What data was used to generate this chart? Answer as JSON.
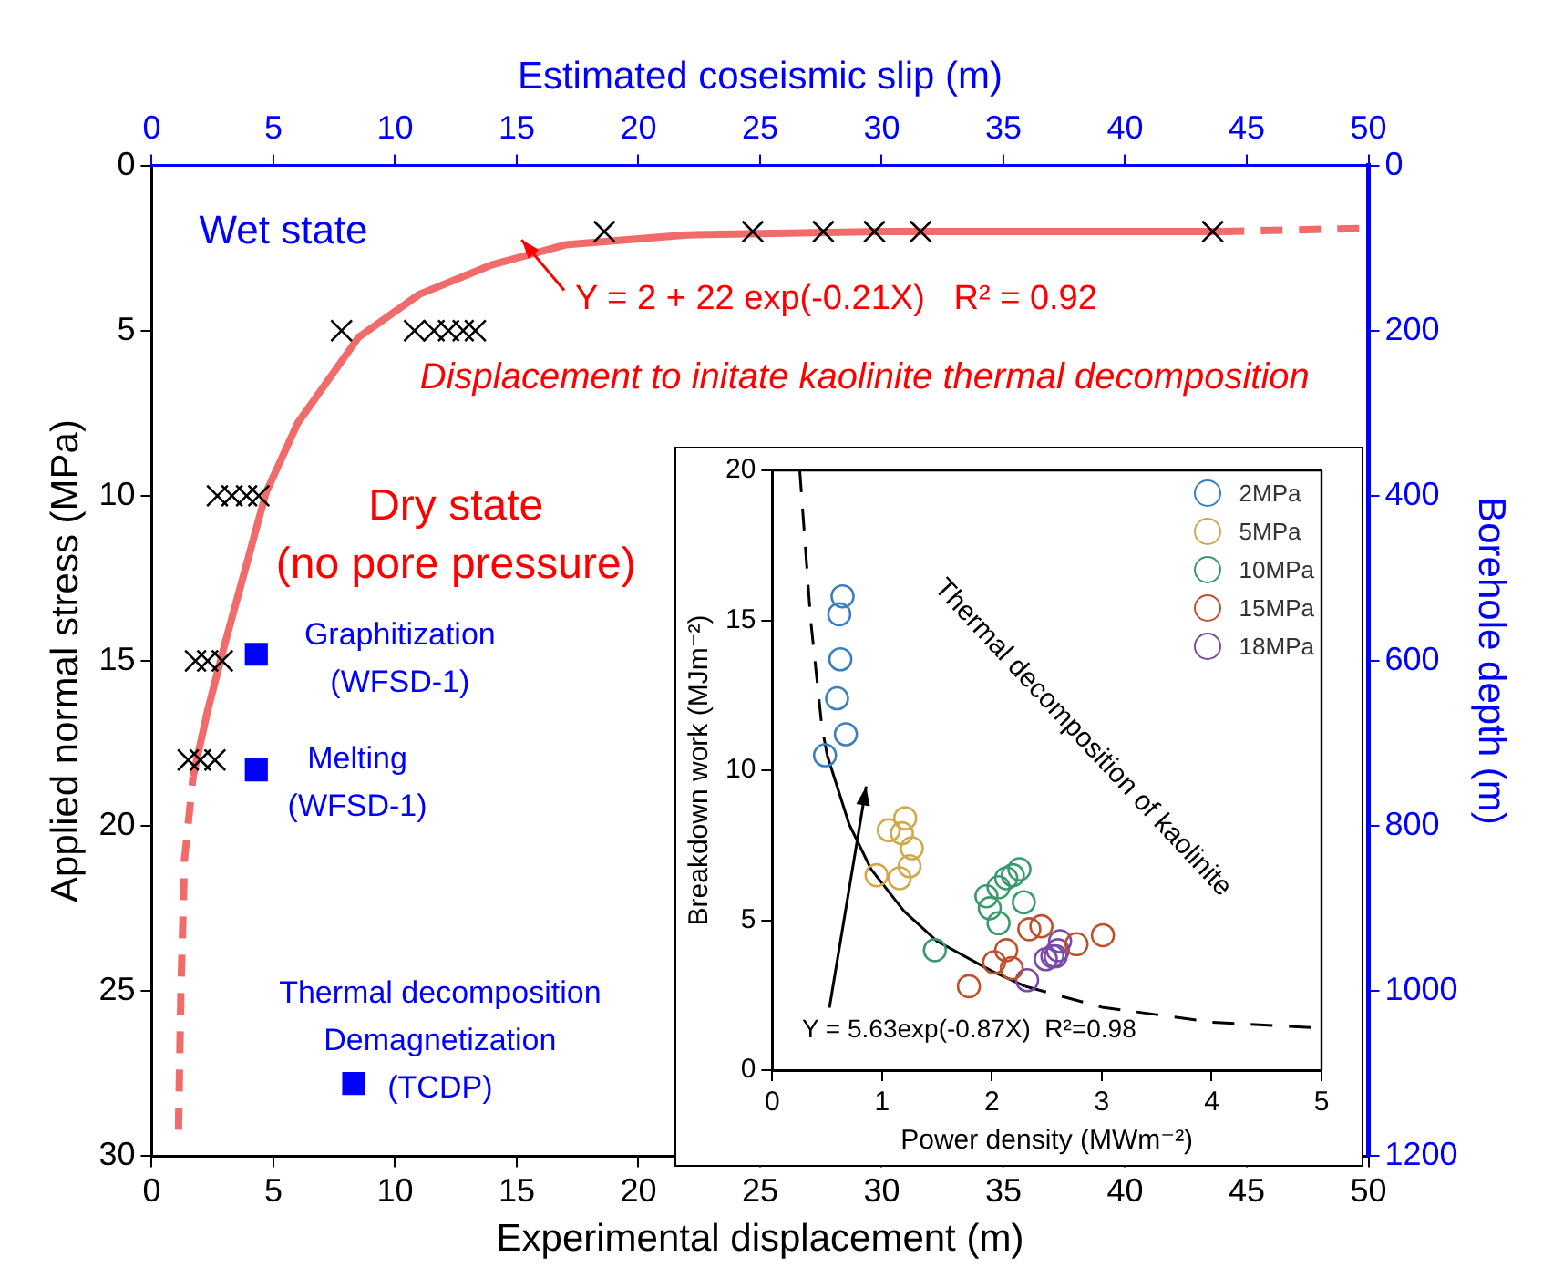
{
  "chart_data": [
    {
      "type": "scatter",
      "xlabel": "Experimental displacement (m)",
      "x2label": "Estimated coseismic slip (m)",
      "ylabel": "Applied normal stress (MPa)",
      "y2label": "Borehole depth (m)",
      "xlim": [
        0,
        50
      ],
      "xticks": [
        0,
        5,
        10,
        15,
        20,
        25,
        30,
        35,
        40,
        45,
        50
      ],
      "x2lim": [
        0,
        50
      ],
      "x2ticks": [
        0,
        5,
        10,
        15,
        20,
        25,
        30,
        35,
        40,
        45,
        50
      ],
      "ylim": [
        30,
        0
      ],
      "yticks": [
        0,
        5,
        10,
        15,
        20,
        25,
        30
      ],
      "y2lim": [
        1200,
        0
      ],
      "y2ticks": [
        0,
        200,
        400,
        600,
        800,
        1000,
        1200
      ],
      "grid": false,
      "legend": false,
      "series": [
        {
          "type": "scatter",
          "marker": "cross",
          "color": "#000000",
          "x": [
            18.6,
            24.7,
            27.6,
            29.7,
            31.6,
            43.6,
            7.8,
            10.8,
            11.6,
            12.2,
            12.8,
            13.3,
            2.7,
            3.3,
            3.9,
            4.4,
            1.8,
            2.3,
            2.9,
            1.5,
            2.0,
            2.6
          ],
          "values": [
            2,
            2,
            2,
            2,
            2,
            2,
            5,
            5,
            5,
            5,
            5,
            5,
            10,
            10,
            10,
            10,
            15,
            15,
            15,
            18,
            18,
            18
          ]
        },
        {
          "type": "scatter",
          "marker": "square",
          "color": "#0000ff",
          "x": [
            4.3,
            4.3,
            8.3
          ],
          "values": [
            14.8,
            18.3,
            27.8
          ]
        },
        {
          "type": "line",
          "line_style": "solid",
          "color": "#f26b6b",
          "x": [
            1.7,
            2.3,
            3,
            4,
            4.7,
            6,
            8.5,
            11,
            14,
            17,
            22,
            30,
            44
          ],
          "values": [
            18.5,
            16.5,
            14.5,
            11.8,
            9.9,
            7.8,
            5.2,
            3.9,
            3.0,
            2.4,
            2.1,
            2.0,
            2.0
          ]
        },
        {
          "type": "line",
          "line_style": "dashed",
          "color": "#f26b6b",
          "x": [
            1.1,
            1.2,
            1.35,
            1.7
          ],
          "values": [
            29.2,
            25,
            21,
            18.5
          ]
        },
        {
          "type": "line",
          "line_style": "dashed",
          "color": "#f26b6b",
          "x": [
            44,
            50
          ],
          "values": [
            2.0,
            1.9
          ]
        }
      ],
      "annotations": [
        "Wet state",
        "Y = 2 + 22 exp(-0.21X)   R² = 0.92",
        "Displacement to initate kaolinite thermal decomposition",
        "Dry state\n(no pore pressure)",
        "Graphitization\n(WFSD-1)",
        "Melting\n(WFSD-1)",
        "Thermal decomposition\nDemagnetization\n(TCDP)"
      ]
    },
    {
      "type": "scatter",
      "xlabel": "Power density (MWm⁻²)",
      "ylabel": "Breakdown work (MJm⁻²)",
      "xlim": [
        0,
        5
      ],
      "xticks": [
        0,
        1,
        2,
        3,
        4,
        5
      ],
      "ylim": [
        0,
        20
      ],
      "yticks": [
        0,
        5,
        10,
        15,
        20
      ],
      "grid": false,
      "legend": "top right",
      "series": [
        {
          "name": "2MPa",
          "marker": "circle",
          "color": "#3a7fc0",
          "x": [
            0.64,
            0.61,
            0.62,
            0.59,
            0.67,
            0.48
          ],
          "values": [
            15.8,
            15.2,
            13.7,
            12.4,
            11.2,
            10.5
          ]
        },
        {
          "name": "5MPa",
          "marker": "circle",
          "color": "#d4a84a",
          "x": [
            0.95,
            1.06,
            1.21,
            1.18,
            1.27,
            1.25,
            1.16
          ],
          "values": [
            6.5,
            8.0,
            8.4,
            7.9,
            7.4,
            6.8,
            6.4
          ]
        },
        {
          "name": "10MPa",
          "marker": "circle",
          "color": "#3a9a6e",
          "x": [
            1.48,
            1.95,
            1.98,
            2.06,
            2.06,
            2.13,
            2.25,
            2.29,
            2.19
          ],
          "values": [
            4.0,
            5.8,
            5.4,
            4.9,
            6.1,
            6.4,
            6.7,
            5.6,
            6.5
          ]
        },
        {
          "name": "15MPa",
          "marker": "circle",
          "color": "#c0502a",
          "x": [
            1.79,
            2.02,
            2.13,
            2.18,
            2.34,
            2.45,
            2.77,
            3.01
          ],
          "values": [
            2.8,
            3.6,
            4.0,
            3.4,
            4.7,
            4.8,
            4.2,
            4.5
          ]
        },
        {
          "name": "18MPa",
          "marker": "circle",
          "color": "#7a4aa8",
          "x": [
            2.32,
            2.49,
            2.55,
            2.6,
            2.62,
            2.58
          ],
          "values": [
            3.0,
            3.7,
            3.8,
            4.0,
            4.3,
            3.8
          ]
        },
        {
          "type": "line",
          "line_style": "solid",
          "color": "#000000",
          "x": [
            0.5,
            0.7,
            0.9,
            1.2,
            1.5,
            2.0,
            2.3
          ],
          "values": [
            10.5,
            8.2,
            6.7,
            5.3,
            4.3,
            3.3,
            2.8
          ]
        },
        {
          "type": "line",
          "line_style": "dashed",
          "color": "#000000",
          "x": [
            0.25,
            0.35,
            0.45,
            0.5
          ],
          "values": [
            20,
            15,
            11.5,
            10.5
          ]
        },
        {
          "type": "line",
          "line_style": "dashed",
          "color": "#000000",
          "x": [
            2.3,
            3,
            4,
            5
          ],
          "values": [
            2.8,
            2.1,
            1.6,
            1.4
          ]
        }
      ],
      "annotations": [
        "Thermal decomposition of kaolinite",
        "Y = 5.63exp(-0.87X)  R²=0.98"
      ]
    }
  ]
}
